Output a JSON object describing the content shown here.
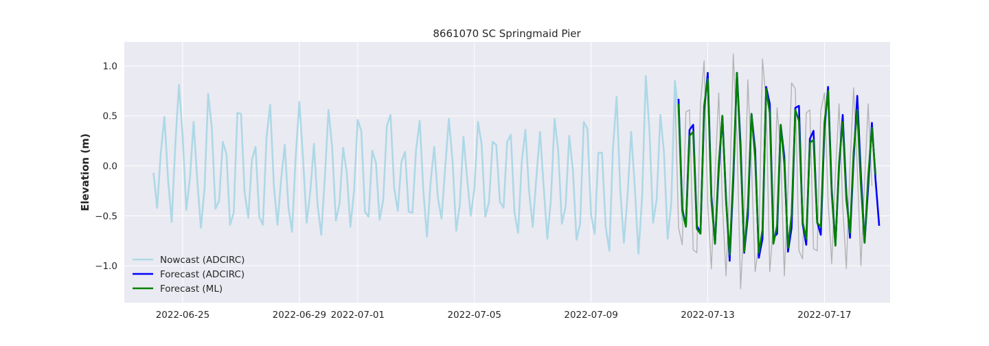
{
  "chart_data": {
    "type": "line",
    "title": "8661070 SC Springmaid Pier",
    "xlabel": "",
    "ylabel": "Elevation (m)",
    "xlim": [
      "2022-06-23T00:00",
      "2022-07-19T06:00"
    ],
    "ylim": [
      -1.37,
      1.24
    ],
    "grid": true,
    "legend_position": "lower-left",
    "x_ticks": [
      "2022-06-25",
      "2022-06-29",
      "2022-07-01",
      "2022-07-05",
      "2022-07-09",
      "2022-07-13",
      "2022-07-17"
    ],
    "y_ticks": [
      -1.0,
      -0.5,
      0.0,
      0.5,
      1.0
    ],
    "y_tick_labels": [
      "−1.0",
      "−0.5",
      "0.0",
      "0.5",
      "1.0"
    ],
    "legend": [
      {
        "label": "Nowcast (ADCIRC)",
        "color": "#add8e6"
      },
      {
        "label": "Forecast (ADCIRC)",
        "color": "#0000ff"
      },
      {
        "label": "Forecast (ML)",
        "color": "#008000"
      }
    ],
    "series": [
      {
        "name": "Nowcast (ADCIRC)",
        "color": "#add8e6",
        "start": "2022-06-24T00:00",
        "step_hours": 3,
        "values": [
          -0.07,
          -0.42,
          0.13,
          0.49,
          -0.14,
          -0.56,
          0.22,
          0.81,
          0.29,
          -0.44,
          -0.12,
          0.44,
          -0.14,
          -0.62,
          -0.23,
          0.72,
          0.38,
          -0.43,
          -0.35,
          0.24,
          0.12,
          -0.59,
          -0.47,
          0.53,
          0.52,
          -0.27,
          -0.52,
          0.06,
          0.19,
          -0.51,
          -0.59,
          0.29,
          0.61,
          -0.19,
          -0.59,
          -0.14,
          0.21,
          -0.41,
          -0.66,
          0.09,
          0.64,
          0.08,
          -0.57,
          -0.26,
          0.22,
          -0.39,
          -0.69,
          -0.11,
          0.56,
          0.19,
          -0.55,
          -0.38,
          0.18,
          -0.07,
          -0.61,
          -0.25,
          0.46,
          0.35,
          -0.46,
          -0.51,
          0.15,
          0.03,
          -0.54,
          -0.34,
          0.4,
          0.51,
          -0.22,
          -0.45,
          0.04,
          0.14,
          -0.46,
          -0.47,
          0.16,
          0.45,
          -0.25,
          -0.71,
          -0.16,
          0.19,
          -0.32,
          -0.53,
          -0.02,
          0.47,
          0.05,
          -0.65,
          -0.39,
          0.29,
          -0.12,
          -0.5,
          -0.23,
          0.44,
          0.21,
          -0.51,
          -0.36,
          0.24,
          0.21,
          -0.36,
          -0.42,
          0.24,
          0.31,
          -0.47,
          -0.67,
          0.04,
          0.36,
          -0.26,
          -0.61,
          -0.11,
          0.34,
          -0.21,
          -0.73,
          -0.33,
          0.47,
          0.15,
          -0.58,
          -0.41,
          0.3,
          -0.04,
          -0.74,
          -0.58,
          0.44,
          0.37,
          -0.49,
          -0.68,
          0.13,
          0.13,
          -0.61,
          -0.85,
          0.17,
          0.69,
          -0.24,
          -0.77,
          -0.3,
          0.34,
          -0.22,
          -0.88,
          -0.3,
          0.9,
          0.35,
          -0.57,
          -0.33,
          0.51,
          0.13,
          -0.73,
          -0.37,
          0.85,
          0.51,
          -0.55
        ]
      },
      {
        "name": "Forecast (ADCIRC)",
        "color": "#0000ff",
        "start": "2022-07-12T00:00",
        "step_hours": 3,
        "values": [
          0.67,
          -0.43,
          -0.6,
          0.36,
          0.41,
          -0.6,
          -0.67,
          0.54,
          0.93,
          -0.3,
          -0.78,
          -0.04,
          0.5,
          -0.32,
          -0.95,
          -0.15,
          0.93,
          0.21,
          -0.87,
          -0.5,
          0.52,
          0.16,
          -0.92,
          -0.73,
          0.79,
          0.62,
          -0.72,
          -0.68,
          0.41,
          0.09,
          -0.86,
          -0.62,
          0.58,
          0.6,
          -0.58,
          -0.79,
          0.27,
          0.35,
          -0.56,
          -0.69,
          0.36,
          0.79,
          -0.24,
          -0.79,
          -0.01,
          0.51,
          -0.28,
          -0.72,
          0.07,
          0.7,
          -0.09,
          -0.77,
          -0.21,
          0.43,
          -0.14,
          -0.6
        ]
      },
      {
        "name": "Forecast (ML)",
        "color": "#008000",
        "start": "2022-07-12T00:00",
        "step_hours": 3,
        "values": [
          0.62,
          -0.45,
          -0.61,
          0.3,
          0.34,
          -0.63,
          -0.68,
          0.6,
          0.87,
          -0.35,
          -0.78,
          0.02,
          0.5,
          -0.35,
          -0.89,
          -0.07,
          0.93,
          0.13,
          -0.86,
          -0.41,
          0.52,
          0.08,
          -0.87,
          -0.64,
          0.77,
          0.53,
          -0.78,
          -0.6,
          0.41,
          0.02,
          -0.82,
          -0.49,
          0.56,
          0.45,
          -0.56,
          -0.73,
          0.23,
          0.26,
          -0.57,
          -0.61,
          0.43,
          0.75,
          -0.28,
          -0.8,
          0.03,
          0.44,
          -0.34,
          -0.67,
          0.14,
          0.56,
          -0.19,
          -0.77,
          -0.11,
          0.38,
          -0.09
        ]
      },
      {
        "name": "",
        "color": "#a9a9a9",
        "start": "2022-07-11T21:00",
        "step_hours": 3,
        "values": [
          0.75,
          -0.62,
          -0.79,
          0.54,
          0.56,
          -0.84,
          -0.87,
          0.62,
          1.05,
          -0.39,
          -1.03,
          -0.1,
          0.73,
          -0.37,
          -1.1,
          -0.24,
          1.12,
          0.3,
          -1.23,
          -0.53,
          0.86,
          0.01,
          -1.06,
          -0.79,
          1.07,
          0.65,
          -1.06,
          -0.58,
          0.58,
          0.13,
          -1.1,
          -0.23,
          0.83,
          0.77,
          -0.85,
          -0.93,
          0.53,
          0.56,
          -0.83,
          -0.85,
          0.55,
          0.73,
          -0.34,
          -0.98,
          -0.08,
          0.62,
          -0.4,
          -1.03,
          -0.01,
          0.78,
          -0.02,
          -1.0,
          -0.16,
          0.62,
          -0.2
        ]
      }
    ]
  }
}
